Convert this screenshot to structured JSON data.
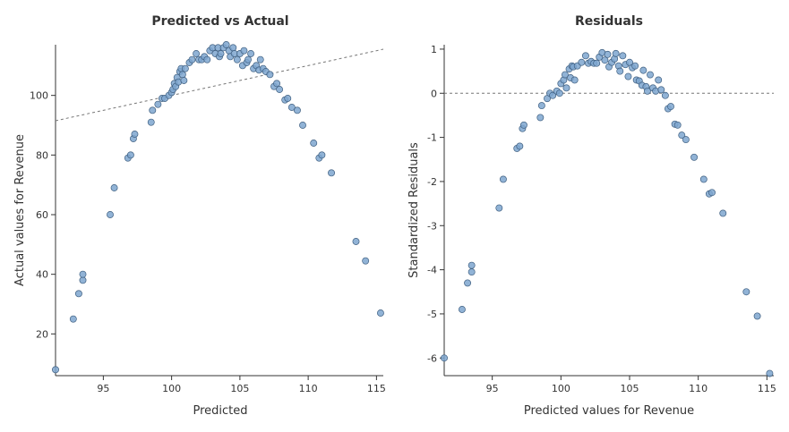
{
  "colors": {
    "point_fill": "#7ea6cf",
    "point_stroke": "#3f5f80",
    "reference_line": "#777777",
    "axis": "#333333"
  },
  "chart_data": [
    {
      "type": "scatter",
      "title": "Predicted vs Actual",
      "xlabel": "Predicted",
      "ylabel": "Actual values for Revenue",
      "xlim": [
        91.5,
        115.5
      ],
      "ylim": [
        6,
        117
      ],
      "xticks": [
        95,
        100,
        105,
        110,
        115
      ],
      "yticks": [
        20,
        40,
        60,
        80,
        100
      ],
      "reference_line": {
        "style": "dashed",
        "x": [
          91.5,
          115.5
        ],
        "y": [
          91.5,
          115.5
        ]
      },
      "points": [
        [
          91.5,
          8
        ],
        [
          92.8,
          25
        ],
        [
          93.2,
          33.5
        ],
        [
          93.5,
          38
        ],
        [
          93.5,
          40
        ],
        [
          95.5,
          60
        ],
        [
          95.8,
          69
        ],
        [
          96.8,
          79
        ],
        [
          97.0,
          80
        ],
        [
          97.2,
          85.5
        ],
        [
          97.3,
          87
        ],
        [
          98.5,
          91
        ],
        [
          98.6,
          95
        ],
        [
          99.0,
          97
        ],
        [
          99.3,
          99
        ],
        [
          99.5,
          99
        ],
        [
          99.8,
          100
        ],
        [
          100.0,
          101
        ],
        [
          100.1,
          102
        ],
        [
          100.2,
          104
        ],
        [
          100.3,
          103
        ],
        [
          100.4,
          106
        ],
        [
          100.5,
          104.5
        ],
        [
          100.6,
          108
        ],
        [
          100.7,
          109
        ],
        [
          100.8,
          107
        ],
        [
          100.9,
          105
        ],
        [
          101.0,
          109
        ],
        [
          101.3,
          111
        ],
        [
          101.5,
          112
        ],
        [
          101.8,
          114
        ],
        [
          102.0,
          112
        ],
        [
          102.2,
          112
        ],
        [
          102.4,
          113
        ],
        [
          102.6,
          112
        ],
        [
          102.8,
          115
        ],
        [
          103.0,
          116
        ],
        [
          103.2,
          114
        ],
        [
          103.4,
          116
        ],
        [
          103.5,
          113
        ],
        [
          103.6,
          114
        ],
        [
          103.8,
          116
        ],
        [
          104.0,
          117
        ],
        [
          104.2,
          115
        ],
        [
          104.3,
          113
        ],
        [
          104.5,
          116
        ],
        [
          104.6,
          114
        ],
        [
          104.8,
          112
        ],
        [
          105.0,
          114
        ],
        [
          105.2,
          110
        ],
        [
          105.3,
          115
        ],
        [
          105.5,
          111
        ],
        [
          105.6,
          112
        ],
        [
          105.8,
          114
        ],
        [
          106.0,
          109
        ],
        [
          106.2,
          110
        ],
        [
          106.4,
          108.5
        ],
        [
          106.5,
          112
        ],
        [
          106.7,
          109
        ],
        [
          106.9,
          108
        ],
        [
          107.2,
          107
        ],
        [
          107.5,
          103
        ],
        [
          107.7,
          104
        ],
        [
          107.9,
          102
        ],
        [
          108.3,
          98.5
        ],
        [
          108.5,
          99
        ],
        [
          108.8,
          96
        ],
        [
          109.2,
          95
        ],
        [
          109.6,
          90
        ],
        [
          110.4,
          84
        ],
        [
          110.8,
          79
        ],
        [
          111.0,
          80
        ],
        [
          111.7,
          74
        ],
        [
          113.5,
          51
        ],
        [
          114.2,
          44.5
        ],
        [
          115.3,
          27
        ]
      ]
    },
    {
      "type": "scatter",
      "title": "Residuals",
      "xlabel": "Predicted values for Revenue",
      "ylabel": "Standardized Residuals",
      "xlim": [
        91.5,
        115.5
      ],
      "ylim": [
        -6.4,
        1.1
      ],
      "xticks": [
        95,
        100,
        105,
        110,
        115
      ],
      "yticks": [
        1,
        0,
        -1,
        -2,
        -3,
        -4,
        -5,
        -6
      ],
      "reference_line": {
        "style": "dashed",
        "y": 0
      },
      "points": [
        [
          91.5,
          -6.0
        ],
        [
          92.8,
          -4.9
        ],
        [
          93.2,
          -4.3
        ],
        [
          93.5,
          -4.05
        ],
        [
          93.5,
          -3.9
        ],
        [
          95.5,
          -2.6
        ],
        [
          95.8,
          -1.95
        ],
        [
          96.8,
          -1.25
        ],
        [
          97.0,
          -1.2
        ],
        [
          97.2,
          -0.8
        ],
        [
          97.3,
          -0.72
        ],
        [
          98.5,
          -0.55
        ],
        [
          98.6,
          -0.28
        ],
        [
          99.0,
          -0.12
        ],
        [
          99.2,
          0.0
        ],
        [
          99.4,
          -0.05
        ],
        [
          99.7,
          0.05
        ],
        [
          99.9,
          0.0
        ],
        [
          100.0,
          0.22
        ],
        [
          100.2,
          0.3
        ],
        [
          100.3,
          0.42
        ],
        [
          100.4,
          0.12
        ],
        [
          100.6,
          0.55
        ],
        [
          100.7,
          0.35
        ],
        [
          100.8,
          0.62
        ],
        [
          100.9,
          0.6
        ],
        [
          101.0,
          0.3
        ],
        [
          101.2,
          0.62
        ],
        [
          101.5,
          0.7
        ],
        [
          101.8,
          0.85
        ],
        [
          102.0,
          0.68
        ],
        [
          102.2,
          0.72
        ],
        [
          102.4,
          0.68
        ],
        [
          102.6,
          0.68
        ],
        [
          102.8,
          0.82
        ],
        [
          103.0,
          0.92
        ],
        [
          103.2,
          0.75
        ],
        [
          103.4,
          0.88
        ],
        [
          103.5,
          0.6
        ],
        [
          103.7,
          0.7
        ],
        [
          103.9,
          0.78
        ],
        [
          104.0,
          0.9
        ],
        [
          104.2,
          0.62
        ],
        [
          104.3,
          0.5
        ],
        [
          104.5,
          0.85
        ],
        [
          104.7,
          0.65
        ],
        [
          104.9,
          0.38
        ],
        [
          105.0,
          0.7
        ],
        [
          105.2,
          0.58
        ],
        [
          105.4,
          0.62
        ],
        [
          105.5,
          0.3
        ],
        [
          105.7,
          0.28
        ],
        [
          105.9,
          0.18
        ],
        [
          106.0,
          0.52
        ],
        [
          106.2,
          0.15
        ],
        [
          106.3,
          0.05
        ],
        [
          106.5,
          0.42
        ],
        [
          106.7,
          0.12
        ],
        [
          106.9,
          0.05
        ],
        [
          107.1,
          0.3
        ],
        [
          107.3,
          0.08
        ],
        [
          107.6,
          -0.05
        ],
        [
          107.8,
          -0.35
        ],
        [
          108.0,
          -0.3
        ],
        [
          108.3,
          -0.7
        ],
        [
          108.5,
          -0.72
        ],
        [
          108.8,
          -0.95
        ],
        [
          109.1,
          -1.05
        ],
        [
          109.7,
          -1.45
        ],
        [
          110.4,
          -1.95
        ],
        [
          110.8,
          -2.28
        ],
        [
          111.0,
          -2.25
        ],
        [
          111.8,
          -2.72
        ],
        [
          113.5,
          -4.5
        ],
        [
          114.3,
          -5.05
        ],
        [
          115.2,
          -6.35
        ]
      ]
    }
  ]
}
